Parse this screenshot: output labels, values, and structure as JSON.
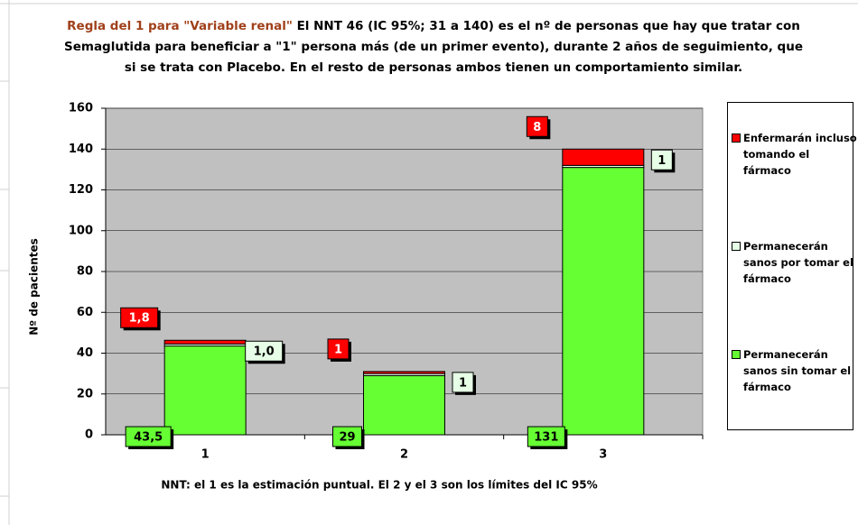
{
  "chart_data": {
    "type": "bar",
    "stacked": true,
    "title_lead": "Regla del 1 para \"Variable renal\"",
    "title": "El NNT 46 (IC 95%; 31 a 140) es el nº de personas que hay que tratar con Semaglutida para beneficiar a \"1\" persona más (de un primer evento), durante 2 años de seguimiento, que si se trata con Placebo. En el resto de personas ambos tienen un comportamiento similar.",
    "xlabel": "NNT: el 1 es la estimación puntual. El 2 y el 3 son los límites del IC 95%",
    "ylabel": "Nº de pacientes",
    "categories": [
      "1",
      "2",
      "3"
    ],
    "series": [
      {
        "name": "Permanecerán sanos sin tomar el fármaco",
        "color": "#66ff33",
        "values": [
          43.5,
          29,
          131
        ],
        "value_labels": [
          "43,5",
          "29",
          "131"
        ]
      },
      {
        "name": "Permanecerán sanos por tomar el fármaco",
        "color": "#e6ffe6",
        "values": [
          1,
          1,
          1
        ],
        "value_labels": [
          "1,0",
          "1",
          "1"
        ]
      },
      {
        "name": "Enfermarán incluso tomando el fármaco",
        "color": "#ff0000",
        "values": [
          1.8,
          1,
          8
        ],
        "value_labels": [
          "1,8",
          "1",
          "8"
        ]
      }
    ],
    "ylim": [
      0,
      160
    ],
    "yticks": [
      0,
      20,
      40,
      60,
      80,
      100,
      120,
      140,
      160
    ],
    "grid": true
  }
}
